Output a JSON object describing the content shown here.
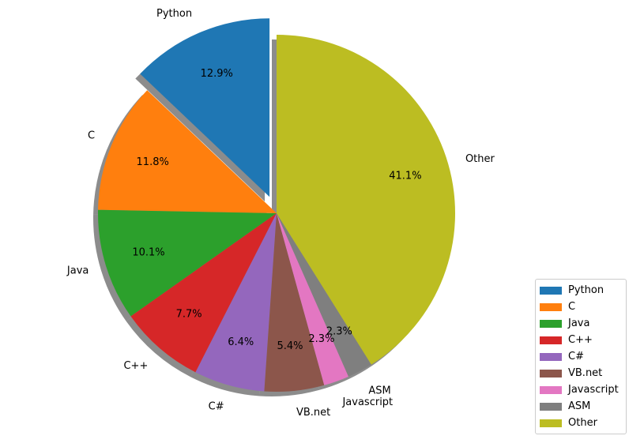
{
  "chart_data": {
    "type": "pie",
    "labels": [
      "Python",
      "C",
      "Java",
      "C++",
      "C#",
      "VB.net",
      "Javascript",
      "ASM",
      "Other"
    ],
    "values": [
      12.9,
      11.8,
      10.1,
      7.7,
      6.4,
      5.4,
      2.3,
      2.3,
      41.1
    ],
    "percent_labels": [
      "12.9%",
      "11.8%",
      "10.1%",
      "7.7%",
      "6.4%",
      "5.4%",
      "2.3%",
      "2.3%",
      "41.1%"
    ],
    "colors": [
      "#1f77b4",
      "#ff7f0e",
      "#2ca02c",
      "#d62728",
      "#9467bd",
      "#8c564b",
      "#e377c2",
      "#7f7f7f",
      "#bcbd22"
    ],
    "explode": [
      "Python"
    ],
    "shadow": true,
    "start_angle": 90,
    "direction": "counterclockwise",
    "legend": {
      "placement": "lower-right",
      "entries": [
        "Python",
        "C",
        "Java",
        "C++",
        "C#",
        "VB.net",
        "Javascript",
        "ASM",
        "Other"
      ]
    }
  }
}
